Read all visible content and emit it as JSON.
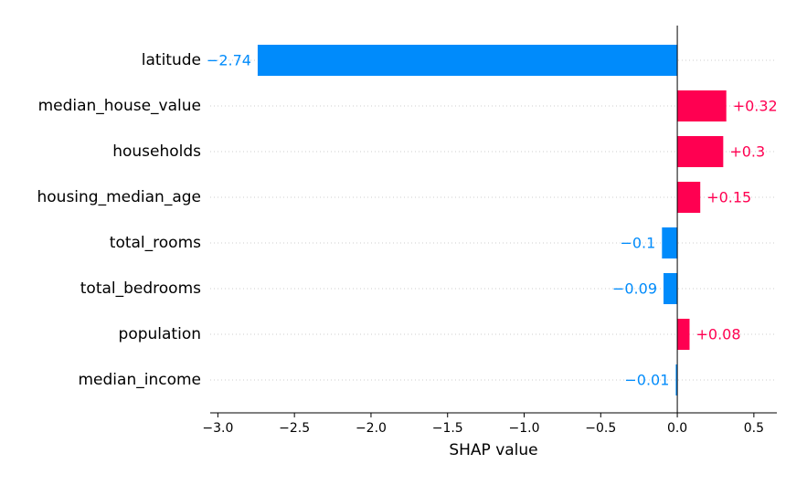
{
  "chart_data": {
    "type": "bar",
    "orientation": "horizontal",
    "title": "",
    "xlabel": "SHAP value",
    "ylabel": "",
    "xlim": [
      -3.05,
      0.65
    ],
    "xticks": [
      -3.0,
      -2.5,
      -2.0,
      -1.5,
      -1.0,
      -0.5,
      0.0,
      0.5
    ],
    "xtick_labels": [
      "−3.0",
      "−2.5",
      "−2.0",
      "−1.5",
      "−1.0",
      "−0.5",
      "0.0",
      "0.5"
    ],
    "grid": "horizontal dotted",
    "categories": [
      "latitude",
      "median_house_value",
      "households",
      "housing_median_age",
      "total_rooms",
      "total_bedrooms",
      "population",
      "median_income"
    ],
    "values": [
      -2.74,
      0.32,
      0.3,
      0.15,
      -0.1,
      -0.09,
      0.08,
      -0.01
    ],
    "value_labels": [
      "−2.74",
      "+0.32",
      "+0.3",
      "+0.15",
      "−0.1",
      "−0.09",
      "+0.08",
      "−0.01"
    ],
    "colors": {
      "positive": "#ff0051",
      "negative": "#008bfb",
      "zero_line": "#000000",
      "grid": "#cccccc"
    }
  }
}
